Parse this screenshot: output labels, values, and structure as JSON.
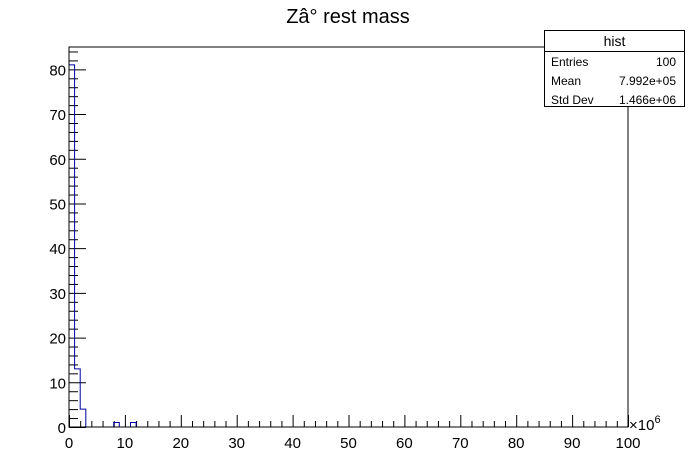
{
  "chart_data": {
    "type": "bar",
    "title": "Zâ° rest mass",
    "xlabel": "",
    "ylabel": "",
    "xlim": [
      0,
      100
    ],
    "ylim": [
      0,
      85
    ],
    "x_exponent_label": "×10",
    "x_exponent_power": "6",
    "x_ticks": [
      "0",
      "10",
      "20",
      "30",
      "40",
      "50",
      "60",
      "70",
      "80",
      "90",
      "100"
    ],
    "y_ticks": [
      "0",
      "10",
      "20",
      "30",
      "40",
      "50",
      "60",
      "70",
      "80"
    ],
    "bin_width": 1,
    "bins": [
      {
        "x": 0,
        "value": 81
      },
      {
        "x": 1,
        "value": 13
      },
      {
        "x": 2,
        "value": 4
      },
      {
        "x": 8,
        "value": 1
      },
      {
        "x": 11,
        "value": 1
      }
    ],
    "line_color": "#0000a0"
  },
  "stats": {
    "name": "hist",
    "rows": [
      {
        "label": "Entries",
        "value": "100"
      },
      {
        "label": "Mean",
        "value": "7.992e+05"
      },
      {
        "label": "Std Dev",
        "value": "1.466e+06"
      }
    ]
  }
}
